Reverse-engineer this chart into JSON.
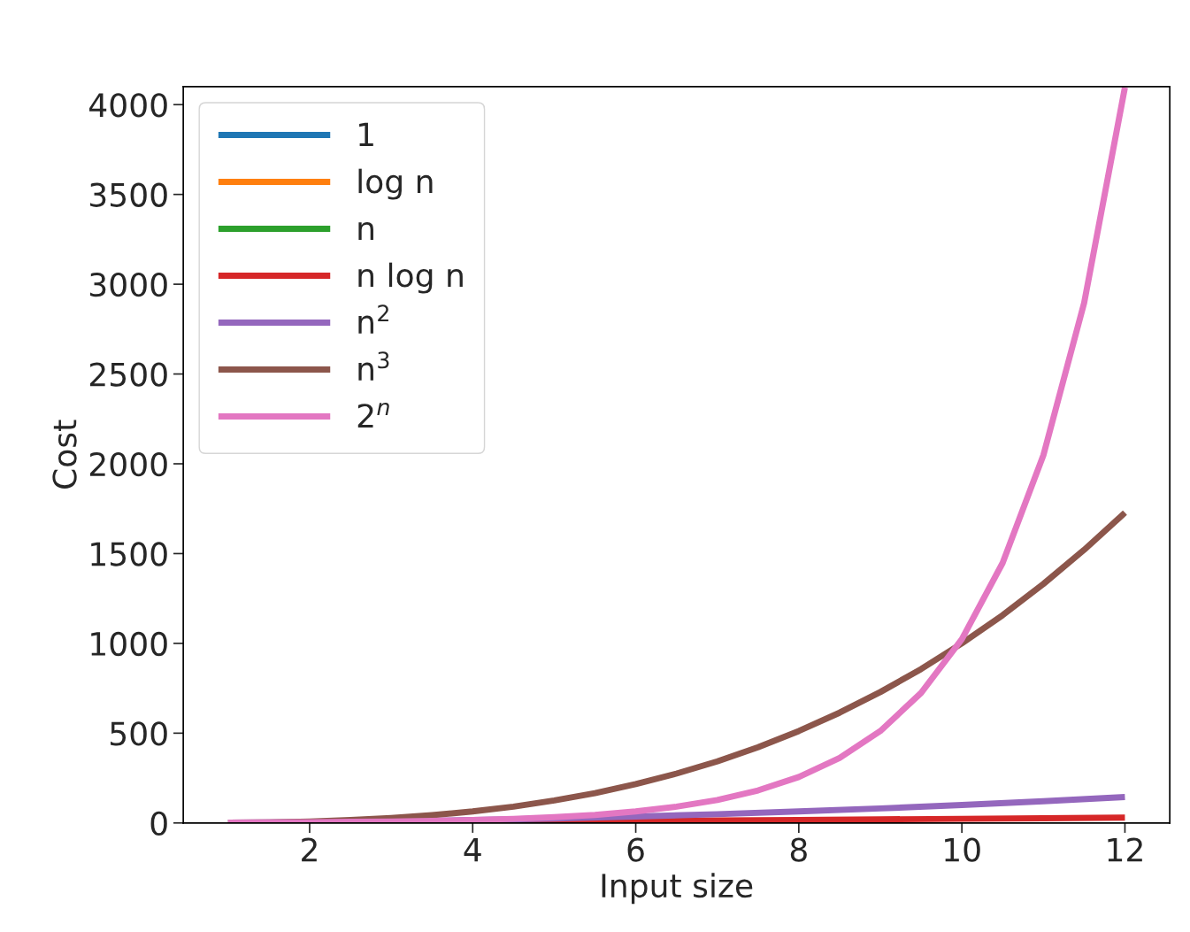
{
  "chart_data": {
    "type": "line",
    "xlabel": "Input size",
    "ylabel": "Cost",
    "xlim": [
      0.45,
      12.55
    ],
    "ylim": [
      0,
      4100
    ],
    "xticks": [
      2,
      4,
      6,
      8,
      10,
      12
    ],
    "yticks": [
      0,
      500,
      1000,
      1500,
      2000,
      2500,
      3000,
      3500,
      4000
    ],
    "grid": false,
    "legend": "top left",
    "line_style": "solid",
    "marker": "none",
    "series": [
      {
        "name": "1",
        "color": "#1f77b4"
      },
      {
        "name": "log n",
        "color": "#ff7f0e"
      },
      {
        "name": "n",
        "color": "#2ca02c"
      },
      {
        "name": "n log n",
        "color": "#d62728",
        "x": [
          4,
          5,
          6,
          7,
          8,
          9,
          10,
          11,
          12
        ],
        "values": [
          6,
          8,
          11,
          14,
          17,
          20,
          23,
          26,
          30
        ]
      },
      {
        "name": "n$^{2}$",
        "color": "#9467bd",
        "x": [
          1,
          2,
          3,
          4,
          5,
          6,
          7,
          8,
          9,
          10,
          11,
          12
        ],
        "values": [
          1,
          4,
          9,
          16,
          25,
          36,
          49,
          64,
          81,
          100,
          121,
          144
        ]
      },
      {
        "name": "n$^{3}$",
        "color": "#8c564b",
        "x": [
          1,
          1.5,
          2,
          2.5,
          3,
          3.5,
          4,
          4.5,
          5,
          5.5,
          6,
          6.5,
          7,
          7.5,
          8,
          8.5,
          9,
          9.5,
          10,
          10.5,
          11,
          11.5,
          12
        ],
        "values": [
          1,
          3,
          8,
          16,
          27,
          43,
          64,
          91,
          125,
          166,
          216,
          275,
          343,
          422,
          512,
          614,
          729,
          857,
          1000,
          1157,
          1331,
          1521,
          1728
        ]
      },
      {
        "name": "2$^{n}$",
        "color": "#e377c2",
        "x": [
          1,
          1.5,
          2,
          2.5,
          3,
          3.5,
          4,
          4.5,
          5,
          5.5,
          6,
          6.5,
          7,
          7.5,
          8,
          8.5,
          9,
          9.5,
          10,
          10.5,
          11,
          11.5,
          12
        ],
        "values": [
          2,
          3,
          4,
          6,
          8,
          11,
          16,
          23,
          32,
          45,
          64,
          91,
          128,
          181,
          256,
          362,
          512,
          724,
          1024,
          1448,
          2048,
          2896,
          4096
        ]
      }
    ]
  }
}
